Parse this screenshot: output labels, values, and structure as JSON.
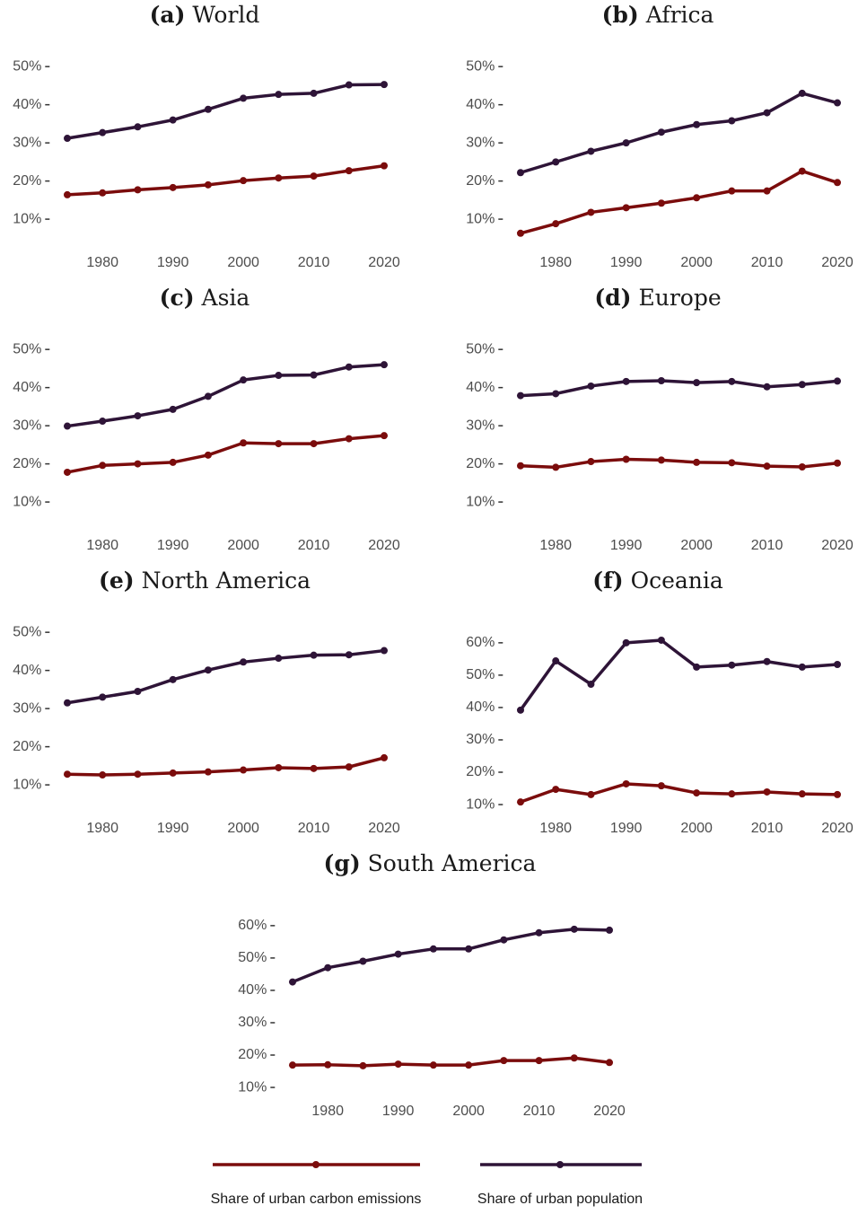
{
  "legend": {
    "series": [
      {
        "name": "Share of urban carbon emissions",
        "color": "#7b0c0c"
      },
      {
        "name": "Share of urban population",
        "color": "#2e1437"
      }
    ]
  },
  "chart_data": [
    {
      "type": "line",
      "label": "(a)",
      "title": "World",
      "x": [
        1975,
        1980,
        1985,
        1990,
        1995,
        2000,
        2005,
        2010,
        2015,
        2020
      ],
      "xlim": [
        1973,
        2022
      ],
      "xticks": [
        1980,
        1990,
        2000,
        2010,
        2020
      ],
      "ylim": [
        3.9,
        53.1
      ],
      "yticks": [
        {
          "value": 10,
          "label": "10%"
        },
        {
          "value": 20,
          "label": "20%"
        },
        {
          "value": 30,
          "label": "30%"
        },
        {
          "value": 40,
          "label": "40%"
        },
        {
          "value": 50,
          "label": "50%"
        }
      ],
      "series": [
        {
          "values": [
            16.4,
            16.9,
            17.7,
            18.3,
            19.0,
            20.1,
            20.8,
            21.3,
            22.7,
            24.0
          ]
        },
        {
          "values": [
            31.2,
            32.7,
            34.2,
            36.0,
            38.8,
            41.7,
            42.7,
            43.0,
            45.2,
            45.3
          ]
        }
      ]
    },
    {
      "type": "line",
      "label": "(b)",
      "title": "Africa",
      "x": [
        1975,
        1980,
        1985,
        1990,
        1995,
        2000,
        2005,
        2010,
        2015,
        2020
      ],
      "xlim": [
        1973,
        2022
      ],
      "xticks": [
        1980,
        1990,
        2000,
        2010,
        2020
      ],
      "ylim": [
        3.9,
        53.1
      ],
      "yticks": [
        {
          "value": 10,
          "label": "10%"
        },
        {
          "value": 20,
          "label": "20%"
        },
        {
          "value": 30,
          "label": "30%"
        },
        {
          "value": 40,
          "label": "40%"
        },
        {
          "value": 50,
          "label": "50%"
        }
      ],
      "series": [
        {
          "values": [
            6.3,
            8.8,
            11.8,
            13.0,
            14.2,
            15.6,
            17.4,
            17.4,
            22.6,
            19.6
          ]
        },
        {
          "values": [
            22.2,
            25.0,
            27.8,
            30.0,
            32.8,
            34.8,
            35.8,
            37.9,
            43.0,
            40.5
          ]
        }
      ]
    },
    {
      "type": "line",
      "label": "(c)",
      "title": "Asia",
      "x": [
        1975,
        1980,
        1985,
        1990,
        1995,
        2000,
        2005,
        2010,
        2015,
        2020
      ],
      "xlim": [
        1973,
        2022
      ],
      "xticks": [
        1980,
        1990,
        2000,
        2010,
        2020
      ],
      "ylim": [
        3.9,
        53.1
      ],
      "yticks": [
        {
          "value": 10,
          "label": "10%"
        },
        {
          "value": 20,
          "label": "20%"
        },
        {
          "value": 30,
          "label": "30%"
        },
        {
          "value": 40,
          "label": "40%"
        },
        {
          "value": 50,
          "label": "50%"
        }
      ],
      "series": [
        {
          "values": [
            17.8,
            19.6,
            20.0,
            20.4,
            22.3,
            25.5,
            25.3,
            25.3,
            26.6,
            27.4
          ]
        },
        {
          "values": [
            29.9,
            31.2,
            32.6,
            34.3,
            37.7,
            42.0,
            43.2,
            43.3,
            45.4,
            46.0
          ]
        }
      ]
    },
    {
      "type": "line",
      "label": "(d)",
      "title": "Europe",
      "x": [
        1975,
        1980,
        1985,
        1990,
        1995,
        2000,
        2005,
        2010,
        2015,
        2020
      ],
      "xlim": [
        1973,
        2022
      ],
      "xticks": [
        1980,
        1990,
        2000,
        2010,
        2020
      ],
      "ylim": [
        3.9,
        53.1
      ],
      "yticks": [
        {
          "value": 10,
          "label": "10%"
        },
        {
          "value": 20,
          "label": "20%"
        },
        {
          "value": 30,
          "label": "30%"
        },
        {
          "value": 40,
          "label": "40%"
        },
        {
          "value": 50,
          "label": "50%"
        }
      ],
      "series": [
        {
          "values": [
            19.5,
            19.1,
            20.6,
            21.2,
            21.0,
            20.4,
            20.3,
            19.4,
            19.2,
            20.2
          ]
        },
        {
          "values": [
            37.9,
            38.4,
            40.4,
            41.6,
            41.8,
            41.3,
            41.6,
            40.2,
            40.8,
            41.7
          ]
        }
      ]
    },
    {
      "type": "line",
      "label": "(e)",
      "title": "North America",
      "x": [
        1975,
        1980,
        1985,
        1990,
        1995,
        2000,
        2005,
        2010,
        2015,
        2020
      ],
      "xlim": [
        1973,
        2022
      ],
      "xticks": [
        1980,
        1990,
        2000,
        2010,
        2020
      ],
      "ylim": [
        3.9,
        53.1
      ],
      "yticks": [
        {
          "value": 10,
          "label": "10%"
        },
        {
          "value": 20,
          "label": "20%"
        },
        {
          "value": 30,
          "label": "30%"
        },
        {
          "value": 40,
          "label": "40%"
        },
        {
          "value": 50,
          "label": "50%"
        }
      ],
      "series": [
        {
          "values": [
            12.8,
            12.6,
            12.8,
            13.1,
            13.4,
            13.9,
            14.5,
            14.3,
            14.7,
            17.1
          ]
        },
        {
          "values": [
            31.5,
            33.0,
            34.5,
            37.6,
            40.1,
            42.2,
            43.2,
            44.0,
            44.1,
            45.2
          ]
        }
      ]
    },
    {
      "type": "line",
      "label": "(f)",
      "title": "Oceania",
      "x": [
        1975,
        1980,
        1985,
        1990,
        1995,
        2000,
        2005,
        2010,
        2015,
        2020
      ],
      "xlim": [
        1973,
        2022
      ],
      "xticks": [
        1980,
        1990,
        2000,
        2010,
        2020
      ],
      "ylim": [
        8.9,
        66.9
      ],
      "yticks": [
        {
          "value": 10,
          "label": "10%"
        },
        {
          "value": 20,
          "label": "20%"
        },
        {
          "value": 30,
          "label": "30%"
        },
        {
          "value": 40,
          "label": "40%"
        },
        {
          "value": 50,
          "label": "50%"
        },
        {
          "value": 60,
          "label": "60%"
        }
      ],
      "series": [
        {
          "values": [
            10.8,
            14.7,
            13.1,
            16.4,
            15.8,
            13.6,
            13.3,
            13.9,
            13.3,
            13.1
          ]
        },
        {
          "values": [
            39.2,
            54.4,
            47.2,
            60.0,
            60.8,
            52.5,
            53.1,
            54.2,
            52.5,
            53.3
          ]
        }
      ]
    },
    {
      "type": "line",
      "label": "(g)",
      "title": "South America",
      "x": [
        1975,
        1980,
        1985,
        1990,
        1995,
        2000,
        2005,
        2010,
        2015,
        2020
      ],
      "xlim": [
        1973,
        2022
      ],
      "xticks": [
        1980,
        1990,
        2000,
        2010,
        2020
      ],
      "ylim": [
        8.9,
        66.9
      ],
      "yticks": [
        {
          "value": 10,
          "label": "10%"
        },
        {
          "value": 20,
          "label": "20%"
        },
        {
          "value": 30,
          "label": "30%"
        },
        {
          "value": 40,
          "label": "40%"
        },
        {
          "value": 50,
          "label": "50%"
        },
        {
          "value": 60,
          "label": "60%"
        }
      ],
      "series": [
        {
          "values": [
            16.9,
            17.0,
            16.7,
            17.2,
            16.9,
            16.9,
            18.3,
            18.3,
            19.1,
            17.7
          ]
        },
        {
          "values": [
            42.6,
            47.0,
            49.0,
            51.2,
            52.8,
            52.8,
            55.6,
            57.8,
            58.9,
            58.6
          ]
        }
      ]
    }
  ]
}
